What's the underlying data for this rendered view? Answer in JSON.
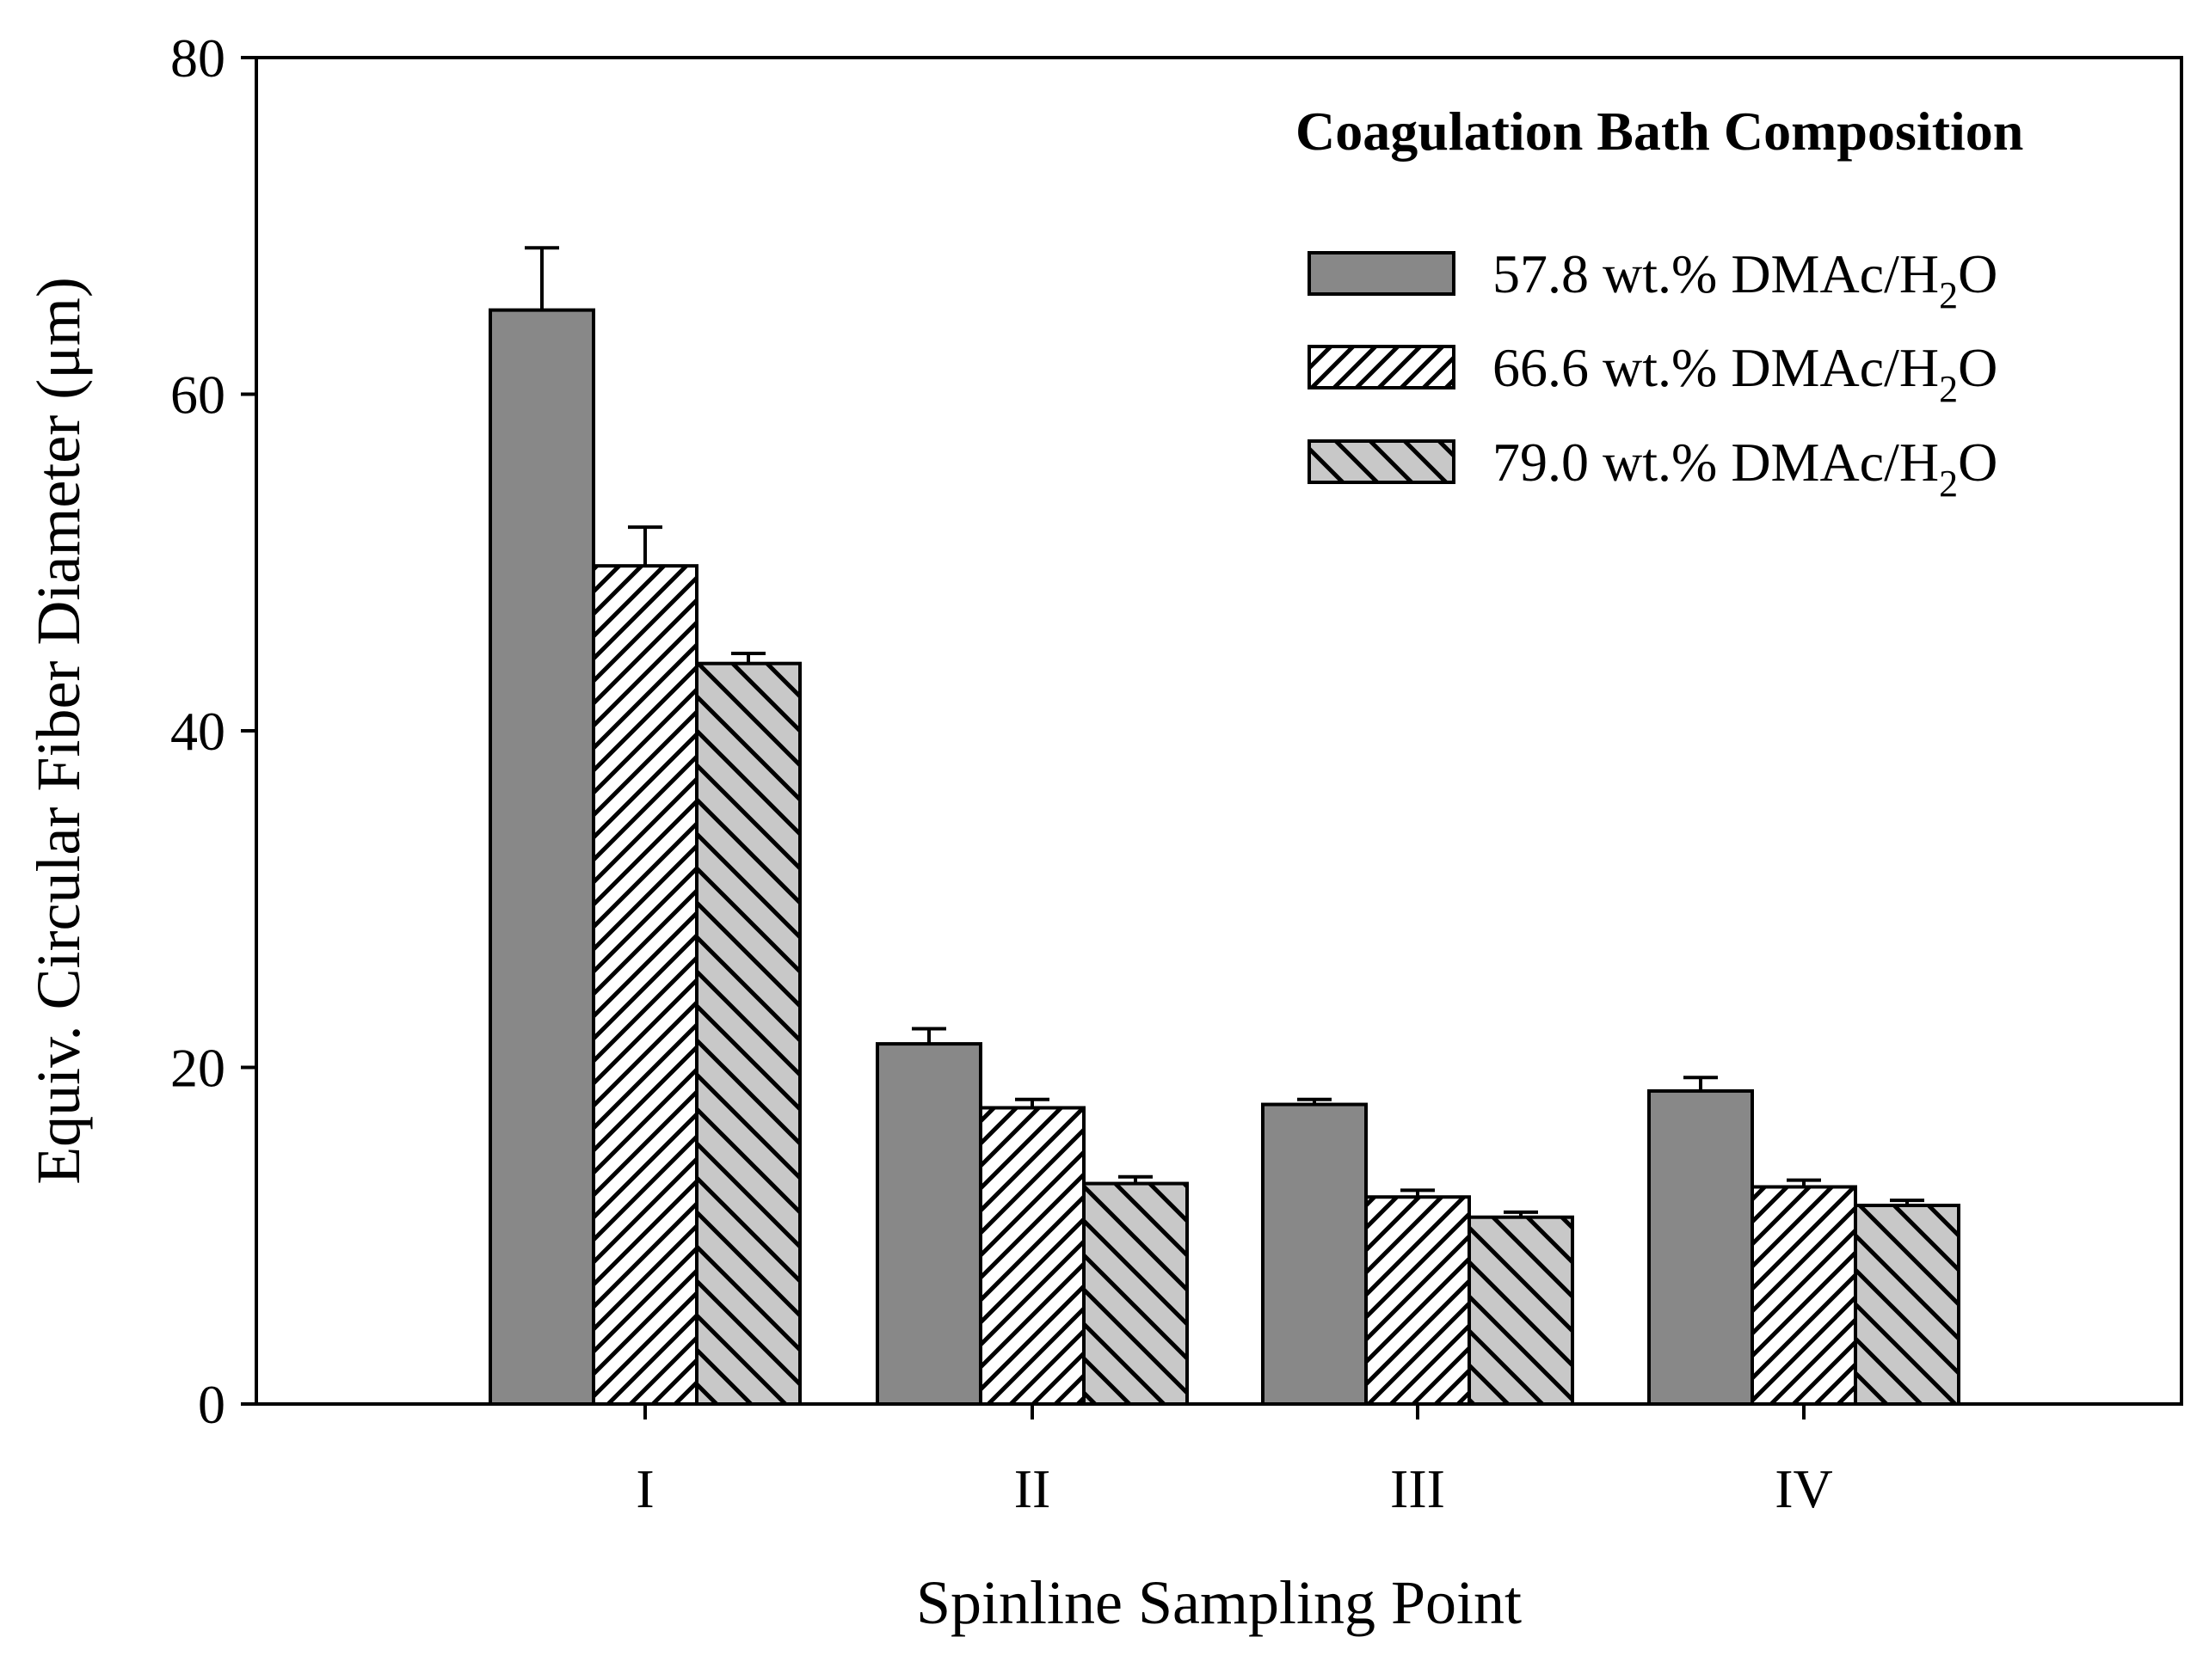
{
  "chart_data": {
    "type": "bar",
    "title": "",
    "xlabel": "Spinline Sampling Point",
    "ylabel": "Equiv. Circular Fiber Diameter (μm)",
    "categories": [
      "I",
      "II",
      "III",
      "IV"
    ],
    "ylim": [
      0,
      80
    ],
    "yticks": [
      0,
      20,
      40,
      60,
      80
    ],
    "legend_title": "Coagulation Bath Composition",
    "legend_position": "top-right",
    "series": [
      {
        "name": "57.8 wt.% DMAc/H2O",
        "label_main": "57.8 wt.% DMAc/H",
        "label_sub": "2",
        "label_tail": "O",
        "fill": "solid-gray",
        "color": "#888888",
        "values": [
          65.0,
          21.4,
          17.8,
          18.6
        ],
        "errors": [
          3.7,
          0.9,
          0.3,
          0.8
        ]
      },
      {
        "name": "66.6 wt.% DMAc/H2O",
        "label_main": "66.6 wt.%  DMAc/H",
        "label_sub": "2",
        "label_tail": "O",
        "fill": "forward-hatch-white",
        "color": "#ffffff",
        "values": [
          49.8,
          17.6,
          12.3,
          12.9
        ],
        "errors": [
          2.3,
          0.5,
          0.4,
          0.4
        ]
      },
      {
        "name": "79.0 wt.% DMAc/H2O",
        "label_main": "79.0 wt.%  DMAc/H",
        "label_sub": "2",
        "label_tail": "O",
        "fill": "backward-hatch-gray",
        "color": "#c8c8c8",
        "values": [
          44.0,
          13.1,
          11.1,
          11.8
        ],
        "errors": [
          0.6,
          0.4,
          0.3,
          0.3
        ]
      }
    ]
  }
}
